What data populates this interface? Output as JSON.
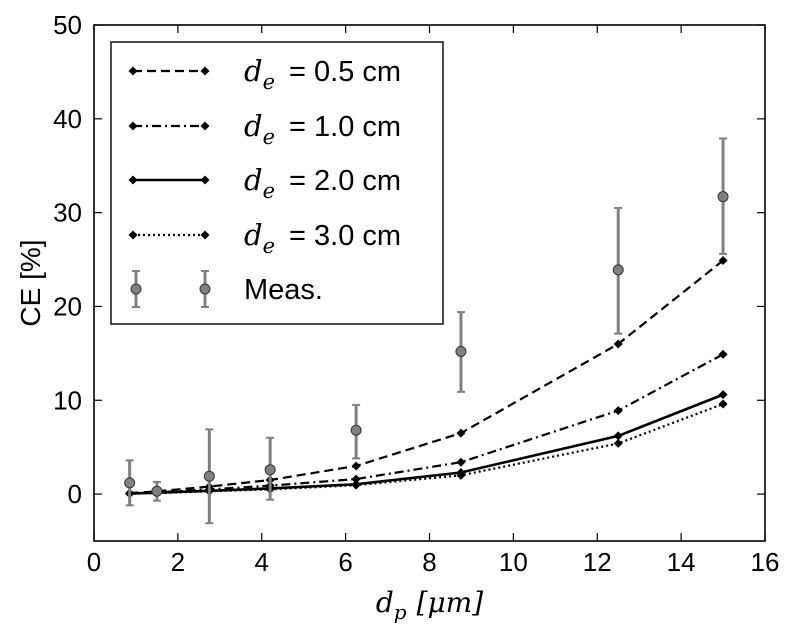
{
  "chart_data": {
    "type": "line",
    "title": "",
    "xlabel": {
      "var": "d",
      "sub": "p",
      "unit": "[μm]"
    },
    "ylabel": "CE [%]",
    "xlim": [
      0,
      16
    ],
    "ylim": [
      -5,
      50
    ],
    "xticks": [
      0,
      2,
      4,
      6,
      8,
      10,
      12,
      14,
      16
    ],
    "yticks": [
      0,
      10,
      20,
      30,
      40,
      50
    ],
    "grid": false,
    "legend_position": "top-left",
    "x": [
      0.85,
      1.5,
      2.75,
      4.2,
      6.25,
      8.75,
      12.5,
      15.0
    ],
    "series": [
      {
        "name": "0.5 cm",
        "legend_var": "d",
        "legend_sub": "e",
        "style": "dashed",
        "values": [
          0.1,
          0.3,
          0.8,
          1.5,
          3.0,
          6.5,
          16.0,
          24.9
        ]
      },
      {
        "name": "1.0 cm",
        "legend_var": "d",
        "legend_sub": "e",
        "style": "dashdot",
        "values": [
          0.05,
          0.2,
          0.5,
          0.9,
          1.6,
          3.4,
          8.9,
          14.9
        ]
      },
      {
        "name": "2.0 cm",
        "legend_var": "d",
        "legend_sub": "e",
        "style": "solid",
        "values": [
          0.05,
          0.15,
          0.35,
          0.6,
          1.05,
          2.3,
          6.2,
          10.6
        ]
      },
      {
        "name": "3.0 cm",
        "legend_var": "d",
        "legend_sub": "e",
        "style": "dotted",
        "values": [
          0.05,
          0.1,
          0.3,
          0.5,
          0.95,
          2.0,
          5.4,
          9.6
        ]
      }
    ],
    "measurements": {
      "name": "Meas.",
      "x": [
        0.85,
        1.5,
        2.75,
        4.2,
        6.25,
        8.75,
        12.5,
        15.0
      ],
      "y": [
        1.2,
        0.3,
        1.9,
        2.6,
        6.8,
        15.2,
        23.9,
        31.7
      ],
      "err_low": [
        2.4,
        1.0,
        5.0,
        3.2,
        3.0,
        4.3,
        6.8,
        6.1
      ],
      "err_high": [
        2.4,
        1.0,
        5.0,
        3.4,
        2.7,
        4.2,
        6.6,
        6.2
      ]
    },
    "colors": {
      "lines": "#000000",
      "measurement": "#808080"
    }
  }
}
